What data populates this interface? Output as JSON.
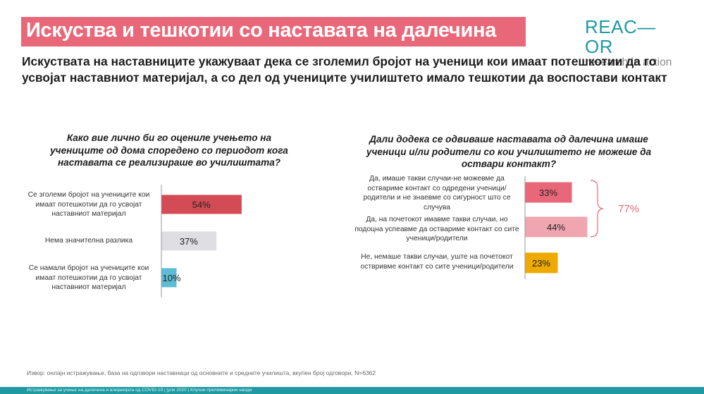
{
  "slide": {
    "title": "Искуства и тешкотии со наставата на далечина",
    "headline": "Искуствата на наставниците укажуваат дека се зголемил бројот на ученици кои имаат потешкотии да го усвојат наставниот материјал, а со дел од учениците училиштето имало тешкотии да воспостави контакт",
    "source_note": "Извор: онлајн истражување, база на одговори наставници од основните и средните  училишта, вкупен број одговори, N=6362",
    "footer": "Истражување за учење на далечина и влијанијата од COVID-19   |  јули 2020 |  Клучни прелиминарни наоди"
  },
  "logo": {
    "word": "REAC—OR",
    "tagline": "research in action",
    "color": "#1f9aa3"
  },
  "colors": {
    "title_band": "#e8687a",
    "red_dark": "#d24b55",
    "grey": "#dedee3",
    "teal": "#5bbcd4",
    "pink": "#e8687a",
    "pink_light": "#f0a6b0",
    "orange": "#eeaa00"
  },
  "chart_data": [
    {
      "type": "bar",
      "orientation": "horizontal",
      "title": "Како вие лично би го оцениле учењето на учениците од дома споредено со периодот кога наставата се реализираше во училиштата?",
      "categories": [
        "Се зголеми бројот на учениците кои имаат потешкотии да го усвојат наставниот материјал",
        "Нема значителна разлика",
        "Се намали бројот на учениците кои имаат потешкотии да го усвојат наставниот материјал"
      ],
      "values": [
        54,
        37,
        10
      ],
      "labels": [
        "54%",
        "37%",
        "10%"
      ],
      "colors": [
        "#d24b55",
        "#dedee3",
        "#5bbcd4"
      ],
      "xlim": [
        0,
        100
      ]
    },
    {
      "type": "bar",
      "orientation": "horizontal",
      "title": "Дали додека се одвиваше наставата од далечина имаше ученици и/ли родители со кои училиштето не можеше да оствари контакт?",
      "categories": [
        "Да, имаше такви случаи-не можевме да оствариме контакт со одредени ученици/родители и не знаевме со сигурност што се случува",
        "Да, на почетокот имавме такви случаи, но подоцна успеавме да оствариме контакт со сите ученици/родители",
        "Не, немаше такви случаи, уште на почетокот оствривме контакт со сите ученици/родители"
      ],
      "values": [
        33,
        44,
        23
      ],
      "labels": [
        "33%",
        "44%",
        "23%"
      ],
      "colors": [
        "#e8687a",
        "#f0a6b0",
        "#eeaa00"
      ],
      "xlim": [
        0,
        100
      ],
      "annotation": "77%"
    }
  ]
}
